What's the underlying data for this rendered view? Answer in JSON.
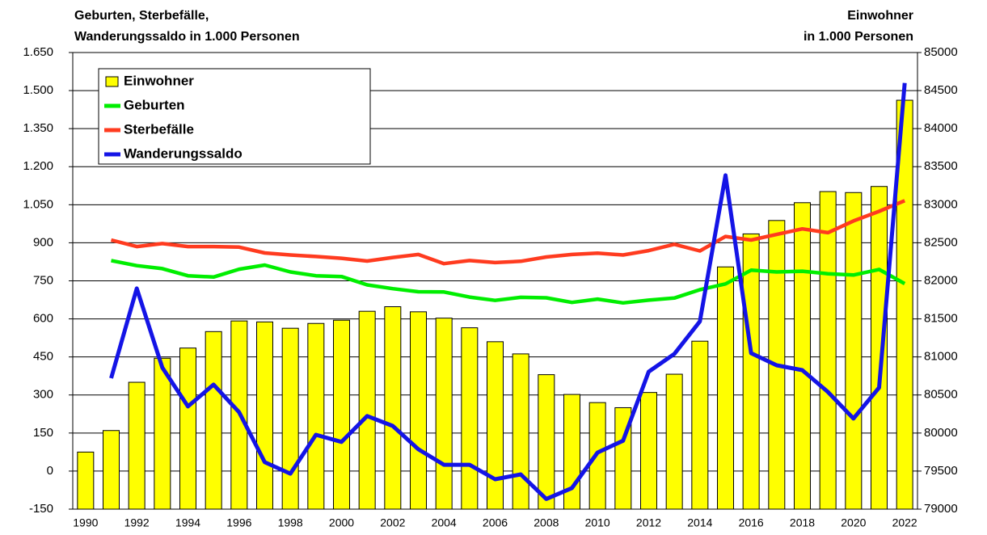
{
  "chart_data": {
    "type": "combo",
    "y_label": [
      "Geburten, Sterbefälle,",
      "Wanderungssaldo in 1.000 Personen"
    ],
    "y2_label": [
      "Einwohner",
      "in 1.000 Personen"
    ],
    "categories": [
      "1990",
      null,
      "1992",
      null,
      "1994",
      null,
      "1996",
      null,
      "1998",
      null,
      "2000",
      null,
      "2002",
      null,
      "2004",
      null,
      "2006",
      null,
      "2008",
      null,
      "2010",
      null,
      "2012",
      null,
      "2014",
      null,
      "2016",
      null,
      "2018",
      null,
      "2020",
      null,
      "2022"
    ],
    "ylim": [
      -150,
      1650
    ],
    "yticks": [
      -150,
      0,
      150,
      300,
      450,
      600,
      750,
      900,
      {
        "value": 1050,
        "label": "1.050"
      },
      {
        "value": 1200,
        "label": "1.200"
      },
      {
        "value": 1350,
        "label": "1.350"
      },
      {
        "value": 1500,
        "label": "1.500"
      },
      {
        "value": 1650,
        "label": "1.650"
      }
    ],
    "y2lim": [
      79000,
      85000
    ],
    "y2ticks": [
      79000,
      79500,
      80000,
      80500,
      81000,
      81500,
      82000,
      82500,
      83000,
      83500,
      84000,
      84500,
      85000
    ],
    "grid": true,
    "series": [
      {
        "name": "Einwohner",
        "type": "bar",
        "axis": "y2",
        "color": "#ffff00",
        "values": [
          79750,
          80033,
          80667,
          80983,
          81117,
          81333,
          81473,
          81460,
          81377,
          81440,
          81483,
          81600,
          81660,
          81593,
          81510,
          81383,
          81200,
          81040,
          80767,
          80507,
          80400,
          80333,
          80533,
          80773,
          81207,
          82183,
          82617,
          82793,
          83027,
          83173,
          83160,
          83240,
          84373
        ]
      },
      {
        "name": "Geburten",
        "type": "line",
        "color": "#00ee00",
        "values": [
          null,
          830,
          810,
          798,
          770,
          765,
          796,
          812,
          785,
          770,
          767,
          734,
          719,
          707,
          706,
          686,
          673,
          685,
          683,
          665,
          678,
          663,
          674,
          682,
          715,
          738,
          792,
          785,
          788,
          778,
          773,
          795,
          739
        ]
      },
      {
        "name": "Sterbefälle",
        "type": "line",
        "color": "#ff3b1f",
        "values": [
          null,
          911,
          885,
          897,
          885,
          885,
          883,
          860,
          852,
          846,
          839,
          828,
          842,
          854,
          818,
          830,
          822,
          827,
          844,
          854,
          859,
          852,
          869,
          894,
          868,
          925,
          911,
          933,
          955,
          940,
          986,
          1024,
          1066
        ]
      },
      {
        "name": "Wanderungssaldo",
        "type": "line",
        "color": "#1414e6",
        "values": [
          null,
          366,
          720,
          408,
          255,
          341,
          232,
          35,
          -10,
          143,
          115,
          217,
          178,
          86,
          25,
          25,
          -32,
          -13,
          -110,
          -67,
          73,
          120,
          392,
          462,
          590,
          1166,
          465,
          417,
          398,
          312,
          207,
          329,
          1530
        ]
      }
    ]
  }
}
